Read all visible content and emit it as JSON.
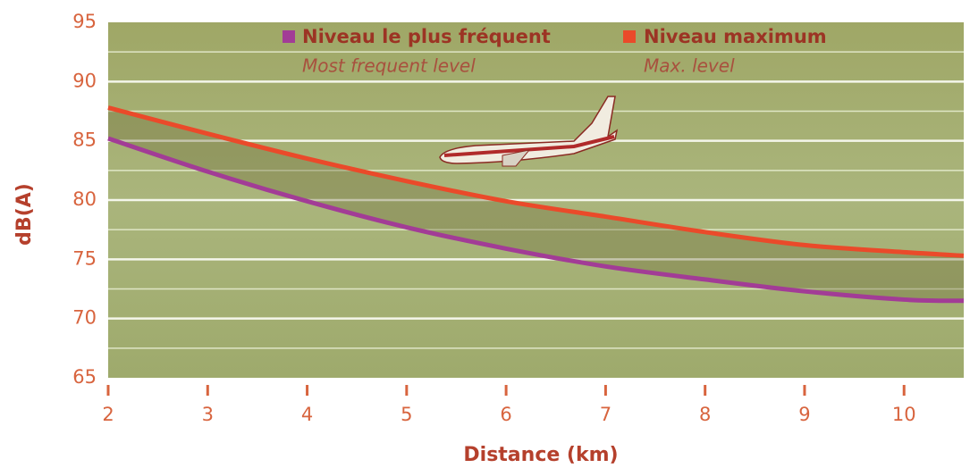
{
  "chart_data": {
    "type": "line",
    "y_label": "dB(A)",
    "x_label": "Distance (km)",
    "x": [
      2,
      3,
      4,
      5,
      6,
      7,
      8,
      9,
      10,
      10.6
    ],
    "series": [
      {
        "name": "Niveau le plus fréquent",
        "name_en": "Most frequent level",
        "color": "#a23c96",
        "values": [
          85.2,
          82.4,
          79.9,
          77.7,
          75.9,
          74.4,
          73.3,
          72.3,
          71.6,
          71.5
        ]
      },
      {
        "name": "Niveau maximum",
        "name_en": "Max. level",
        "color": "#ea4a2a",
        "values": [
          87.8,
          85.6,
          83.5,
          81.6,
          79.9,
          78.6,
          77.3,
          76.2,
          75.6,
          75.3
        ]
      }
    ],
    "xlim": [
      2,
      10.6
    ],
    "xticks": [
      2,
      3,
      4,
      5,
      6,
      7,
      8,
      9,
      10
    ],
    "ylim": [
      65,
      95
    ],
    "yticks": [
      65,
      70,
      75,
      80,
      85,
      90,
      95
    ],
    "grid": true
  }
}
